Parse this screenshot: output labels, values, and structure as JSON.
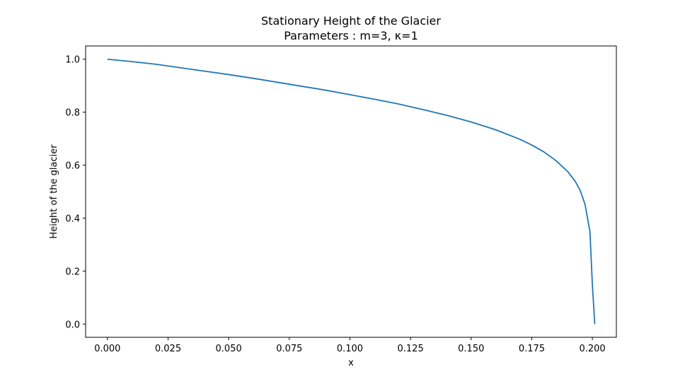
{
  "chart_data": {
    "type": "line",
    "title": "Stationary Height of the Glacier",
    "subtitle": "Parameters : m=3, κ=1",
    "xlabel": "x",
    "ylabel": "Height of the glacier",
    "xlim": [
      -0.009,
      0.2099
    ],
    "ylim": [
      -0.05,
      1.05
    ],
    "xticks": [
      0.0,
      0.025,
      0.05,
      0.075,
      0.1,
      0.125,
      0.15,
      0.175,
      0.2
    ],
    "xtick_labels": [
      "0.000",
      "0.025",
      "0.050",
      "0.075",
      "0.100",
      "0.125",
      "0.150",
      "0.175",
      "0.200"
    ],
    "yticks": [
      0.0,
      0.2,
      0.4,
      0.6,
      0.8,
      1.0
    ],
    "ytick_labels": [
      "0.0",
      "0.2",
      "0.4",
      "0.6",
      "0.8",
      "1.0"
    ],
    "grid": false,
    "series": [
      {
        "color": "#1f77b4",
        "x": [
          0.0,
          0.01,
          0.02,
          0.03,
          0.04,
          0.05,
          0.06,
          0.07,
          0.08,
          0.09,
          0.1,
          0.11,
          0.12,
          0.13,
          0.14,
          0.15,
          0.16,
          0.17,
          0.175,
          0.18,
          0.185,
          0.19,
          0.193,
          0.195,
          0.197,
          0.198,
          0.199,
          0.2,
          0.201
        ],
        "y": [
          1.0,
          0.991,
          0.981,
          0.968,
          0.955,
          0.942,
          0.928,
          0.913,
          0.898,
          0.883,
          0.866,
          0.849,
          0.831,
          0.81,
          0.788,
          0.763,
          0.734,
          0.698,
          0.676,
          0.65,
          0.617,
          0.574,
          0.538,
          0.504,
          0.451,
          0.4,
          0.35,
          0.15,
          0.0
        ]
      }
    ]
  }
}
